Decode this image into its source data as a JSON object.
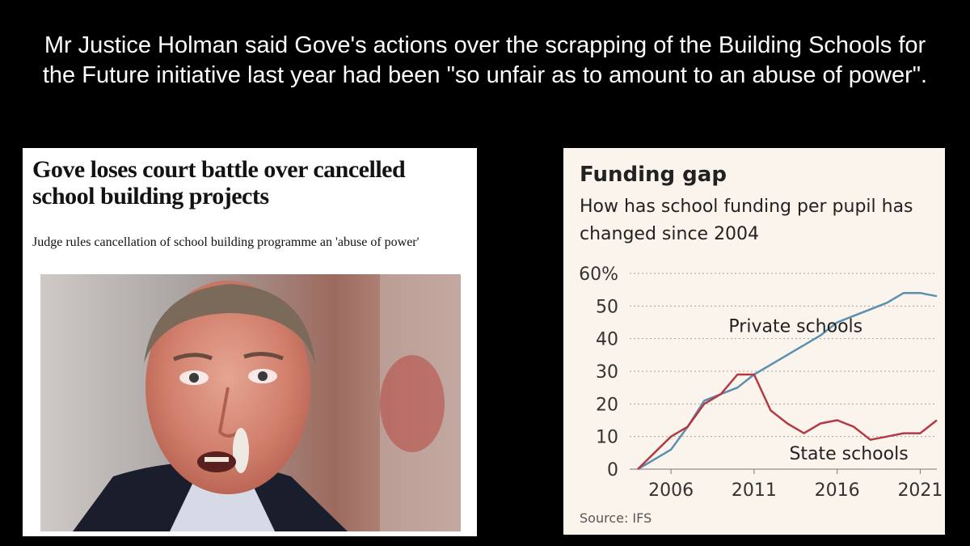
{
  "caption": "Mr Justice Holman said Gove's actions over the scrapping of the Building Schools for the Future initiative last year had been \"so unfair as to amount to an abuse of power\".",
  "article": {
    "headline": "Gove loses court battle over cancelled school building projects",
    "standfirst": "Judge rules cancellation of school building programme an 'abuse of power'"
  },
  "colors": {
    "private": "#5b8fb0",
    "state": "#b33a44",
    "chart_bg": "#fbf4ec"
  },
  "chart_data": {
    "type": "line",
    "title": "Funding gap",
    "subtitle": "How has school funding per pupil has changed since 2004",
    "source": "Source: IFS",
    "ylim": [
      0,
      60
    ],
    "xlim": [
      2004,
      2022
    ],
    "y_ticks": [
      {
        "value": 60,
        "label": "60%"
      },
      {
        "value": 50,
        "label": "50"
      },
      {
        "value": 40,
        "label": "40"
      },
      {
        "value": 30,
        "label": "30"
      },
      {
        "value": 20,
        "label": "20"
      },
      {
        "value": 10,
        "label": "10"
      },
      {
        "value": 0,
        "label": "0"
      }
    ],
    "x_ticks": [
      {
        "value": 2006,
        "label": "2006"
      },
      {
        "value": 2011,
        "label": "2011"
      },
      {
        "value": 2016,
        "label": "2016"
      },
      {
        "value": 2021,
        "label": "2021"
      }
    ],
    "grid": true,
    "series": [
      {
        "name": "Private schools",
        "key": "private",
        "x": [
          2004,
          2005,
          2006,
          2007,
          2008,
          2009,
          2010,
          2011,
          2012,
          2013,
          2014,
          2015,
          2016,
          2017,
          2018,
          2019,
          2020,
          2021,
          2022
        ],
        "values": [
          0,
          3,
          6,
          13,
          21,
          23,
          25,
          29,
          32,
          35,
          38,
          41,
          45,
          47,
          49,
          51,
          54,
          54,
          53
        ]
      },
      {
        "name": "State schools",
        "key": "state",
        "x": [
          2004,
          2005,
          2006,
          2007,
          2008,
          2009,
          2010,
          2011,
          2012,
          2013,
          2014,
          2015,
          2016,
          2017,
          2018,
          2019,
          2020,
          2021,
          2022
        ],
        "values": [
          0,
          5,
          10,
          13,
          20,
          23,
          29,
          29,
          18,
          14,
          11,
          14,
          15,
          13,
          9,
          10,
          11,
          11,
          15
        ]
      }
    ]
  }
}
